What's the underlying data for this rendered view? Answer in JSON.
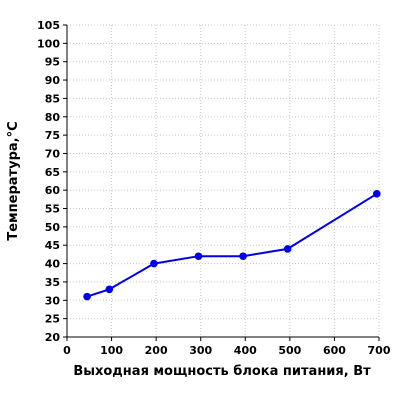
{
  "chart_data": {
    "type": "line",
    "title": "",
    "xlabel": "Выходная мощность блока питания, Вт",
    "ylabel": "Температура,°C",
    "xlim": [
      0,
      700
    ],
    "ylim": [
      20,
      105
    ],
    "xticks": [
      0,
      100,
      200,
      300,
      400,
      500,
      600,
      700
    ],
    "yticks": [
      20,
      25,
      30,
      35,
      40,
      45,
      50,
      55,
      60,
      65,
      70,
      75,
      80,
      85,
      90,
      95,
      100,
      105
    ],
    "grid": true,
    "legend": "none",
    "series": [
      {
        "color": "#0000ee",
        "x": [
          45,
          95,
          195,
          295,
          395,
          495,
          695
        ],
        "y": [
          31,
          33,
          40,
          42,
          42,
          44,
          59
        ]
      }
    ]
  }
}
